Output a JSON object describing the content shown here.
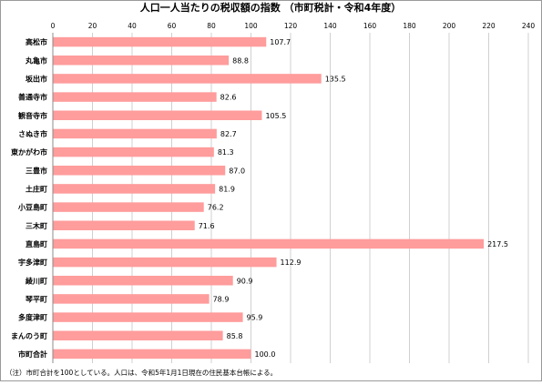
{
  "chart_data": {
    "type": "bar",
    "orientation": "horizontal",
    "title": "人口一人当たりの税収額の指数 （市町税計・令和4年度）",
    "categories": [
      "高松市",
      "丸亀市",
      "坂出市",
      "善通寺市",
      "観音寺市",
      "さぬき市",
      "東かがわ市",
      "三豊市",
      "土庄町",
      "小豆島町",
      "三木町",
      "直島町",
      "宇多津町",
      "綾川町",
      "琴平町",
      "多度津町",
      "まんのう町",
      "市町合計"
    ],
    "values": [
      107.7,
      88.8,
      135.5,
      82.6,
      105.5,
      82.7,
      81.3,
      87.0,
      81.9,
      76.2,
      71.6,
      217.5,
      112.9,
      90.9,
      78.9,
      95.9,
      85.8,
      100.0
    ],
    "value_labels": [
      "107.7",
      "88.8",
      "135.5",
      "82.6",
      "105.5",
      "82.7",
      "81.3",
      "87.0",
      "81.9",
      "76.2",
      "71.6",
      "217.5",
      "112.9",
      "90.9",
      "78.9",
      "95.9",
      "85.8",
      "100.0"
    ],
    "xlim": [
      0,
      240
    ],
    "xticks": [
      0,
      20,
      40,
      60,
      80,
      100,
      120,
      140,
      160,
      180,
      200,
      220,
      240
    ],
    "grid": true,
    "bar_color": "#ff9c9c",
    "footnote": "（注）市町合計を100としている。人口は、令和5年1月1日現在の住民基本台帳による。"
  }
}
